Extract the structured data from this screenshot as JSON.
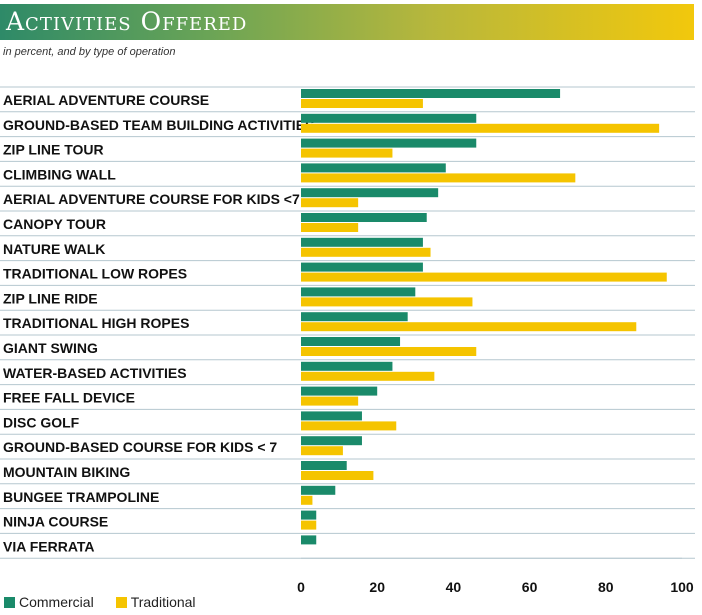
{
  "header": {
    "title": "Activities Offered",
    "subtitle": "in percent, and by type of operation"
  },
  "colors": {
    "commercial": "#1a8a6a",
    "traditional": "#f5c400"
  },
  "legend": {
    "commercial": "Commercial",
    "traditional": "Traditional"
  },
  "chart_data": {
    "type": "bar",
    "orientation": "horizontal",
    "title": "Activities Offered",
    "subtitle": "in percent, and by type of operation",
    "categories": [
      "AERIAL ADVENTURE COURSE",
      "GROUND-BASED TEAM BUILDING ACTIVITIES",
      "ZIP LINE TOUR",
      "CLIMBING WALL",
      "AERIAL ADVENTURE COURSE FOR KIDS <7",
      "CANOPY TOUR",
      "NATURE WALK",
      "TRADITIONAL LOW ROPES",
      "ZIP LINE RIDE",
      "TRADITIONAL HIGH ROPES",
      "GIANT SWING",
      "WATER-BASED ACTIVITIES",
      "FREE FALL DEVICE",
      "DISC GOLF",
      "GROUND-BASED COURSE FOR KIDS < 7",
      "MOUNTAIN BIKING",
      "BUNGEE TRAMPOLINE",
      "NINJA COURSE",
      "VIA FERRATA"
    ],
    "series": [
      {
        "name": "Commercial",
        "values": [
          68,
          46,
          46,
          38,
          36,
          33,
          32,
          32,
          30,
          28,
          26,
          24,
          20,
          16,
          16,
          12,
          9,
          4,
          4
        ]
      },
      {
        "name": "Traditional",
        "values": [
          32,
          94,
          24,
          72,
          15,
          15,
          34,
          96,
          45,
          88,
          46,
          35,
          15,
          25,
          11,
          19,
          3,
          4,
          0
        ]
      }
    ],
    "x_ticks": [
      0,
      20,
      40,
      60,
      80,
      100
    ],
    "xlim": [
      0,
      100
    ],
    "legend_position": "bottom-left",
    "grid": "horizontal row separators"
  }
}
